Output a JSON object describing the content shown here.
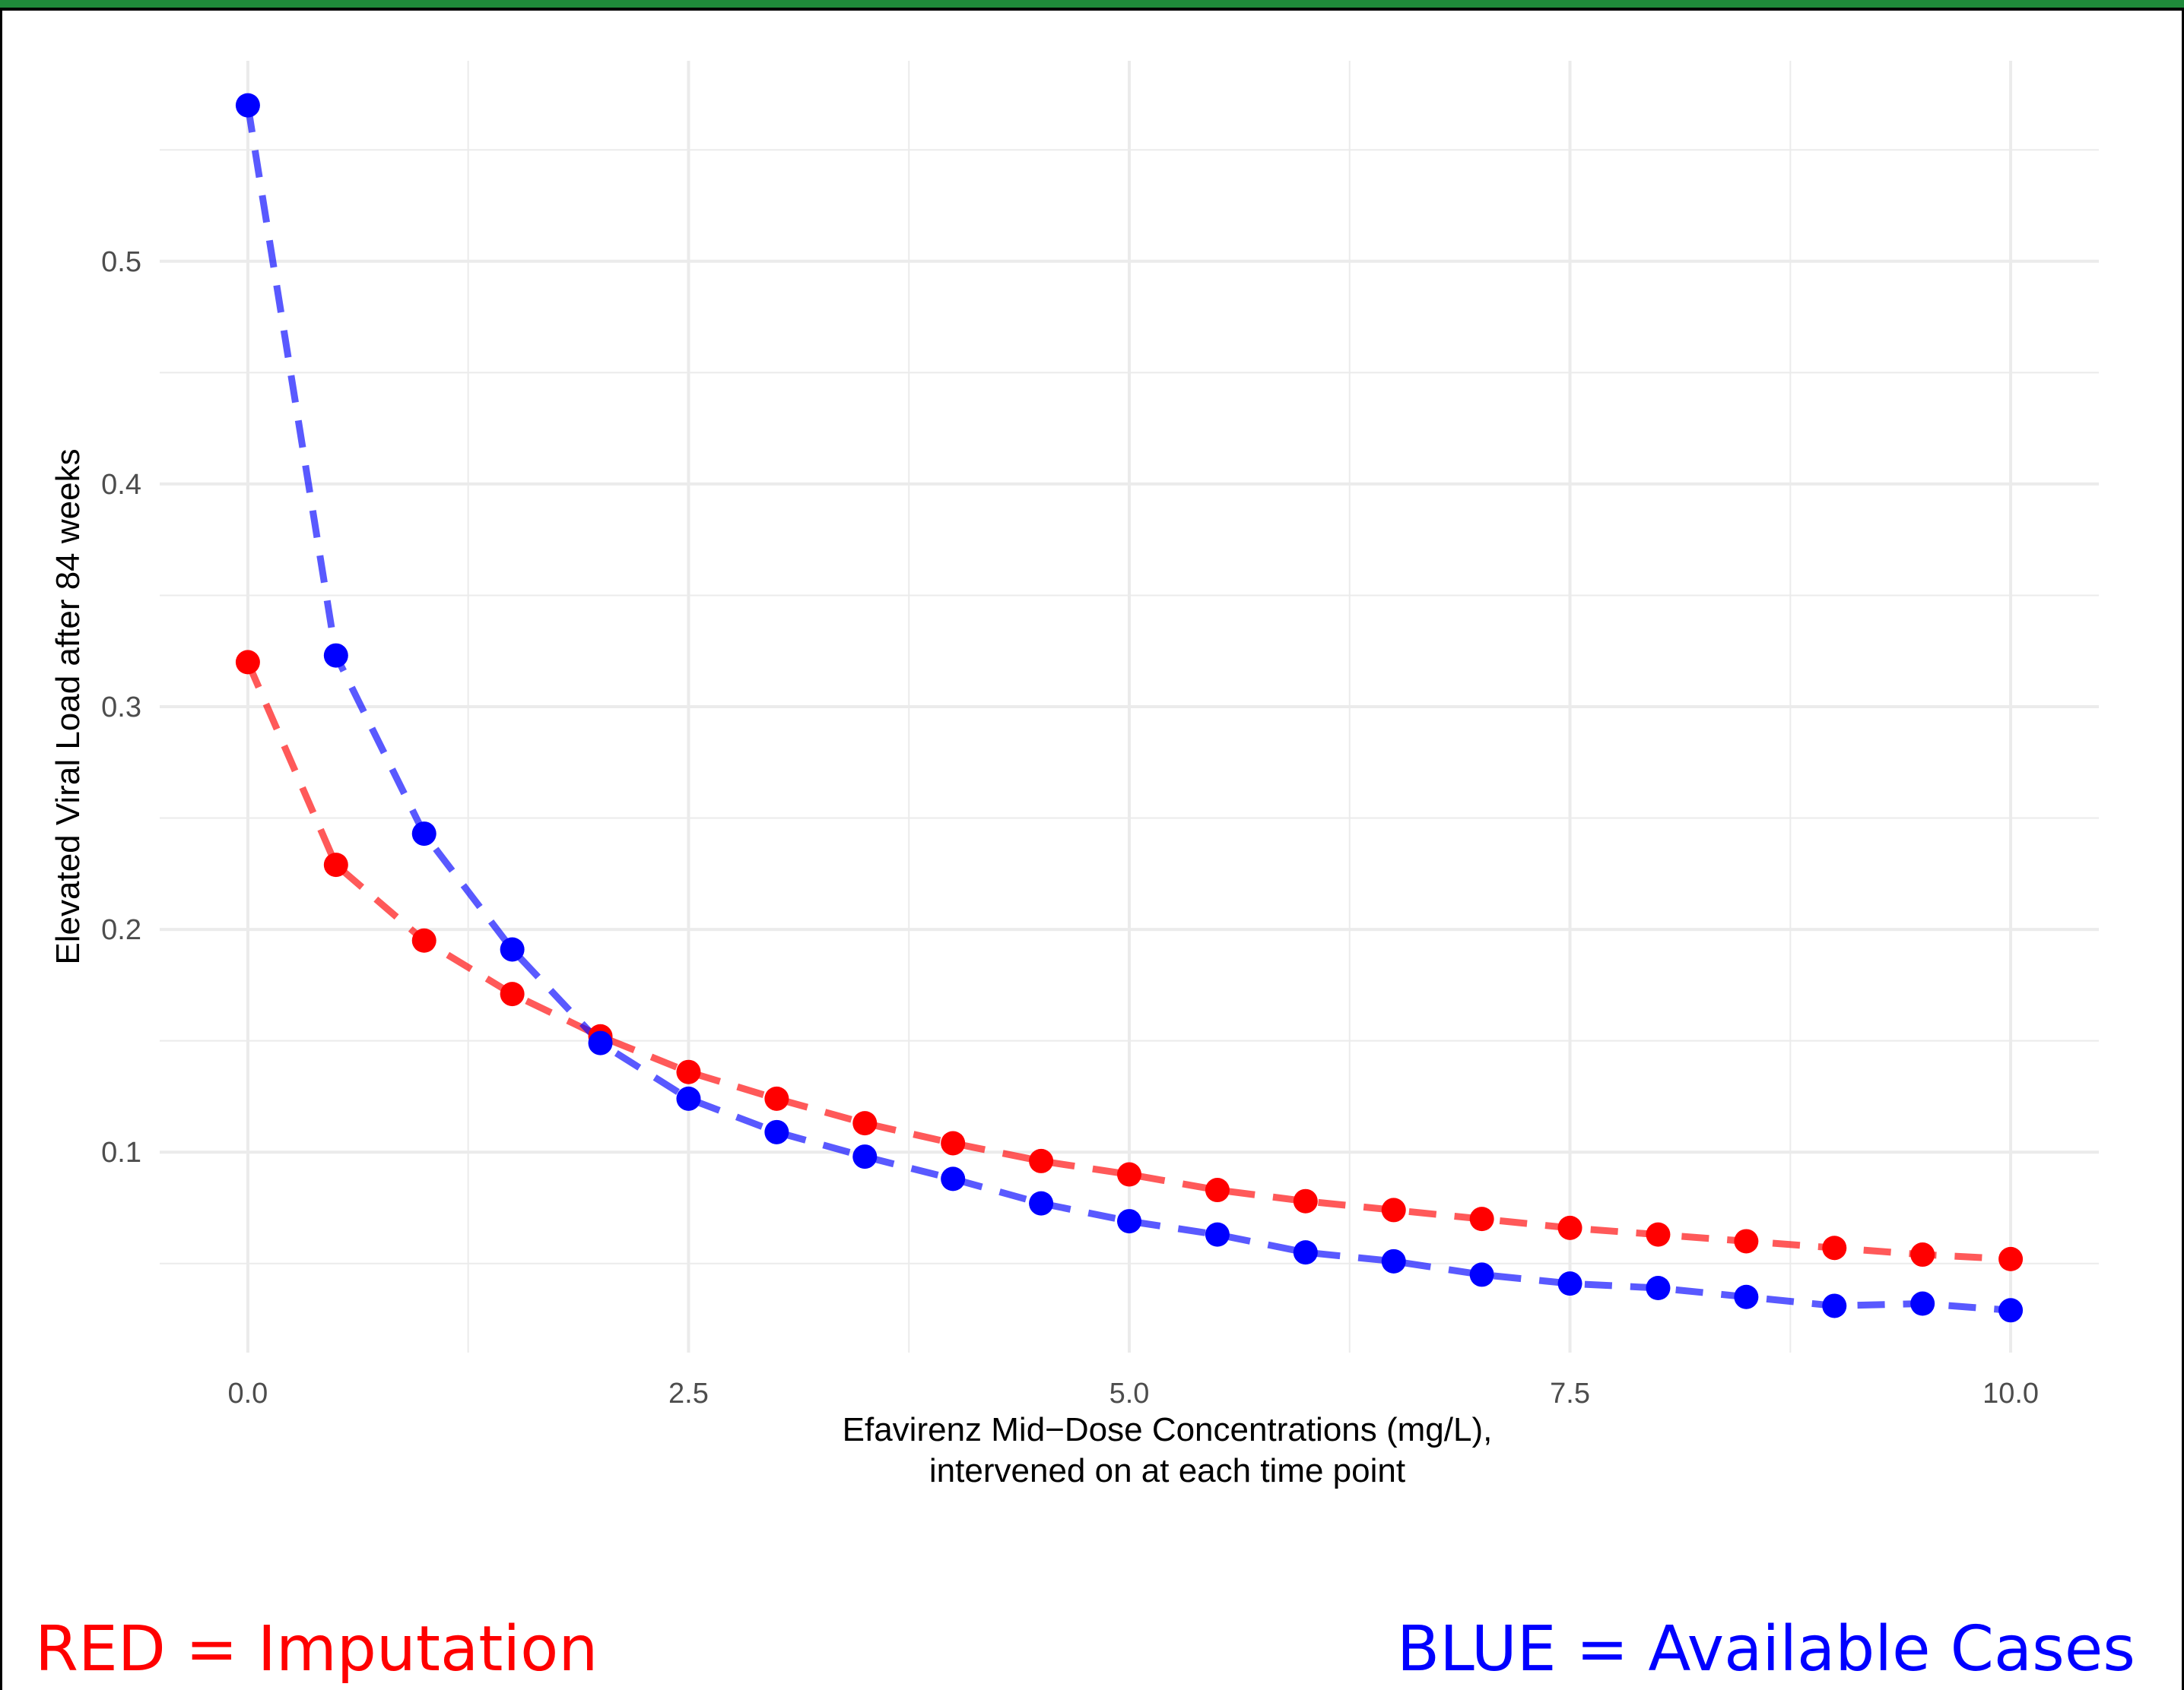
{
  "chart_data": {
    "type": "line",
    "xlabel": [
      "Efavirenz Mid−Dose Concentrations (mg/L),",
      "intervened on at each time point"
    ],
    "ylabel": "Elevated Viral Load after 84 weeks",
    "xlim": [
      -0.5,
      10.5
    ],
    "ylim": [
      0.01,
      0.59
    ],
    "x_ticks": [
      "0.0",
      "2.5",
      "5.0",
      "7.5",
      "10.0"
    ],
    "x_tick_values": [
      0,
      2.5,
      5,
      7.5,
      10
    ],
    "y_ticks": [
      "0.1",
      "0.2",
      "0.3",
      "0.4",
      "0.5"
    ],
    "y_tick_values": [
      0.1,
      0.2,
      0.3,
      0.4,
      0.5
    ],
    "grid": true,
    "x": [
      0,
      0.5,
      1,
      1.5,
      2,
      2.5,
      3,
      3.5,
      4,
      4.5,
      5,
      5.5,
      6,
      6.5,
      7,
      7.5,
      8,
      8.5,
      9,
      9.5,
      10
    ],
    "series": [
      {
        "color": "#ff0000",
        "values": [
          0.32,
          0.229,
          0.195,
          0.171,
          0.152,
          0.136,
          0.124,
          0.113,
          0.104,
          0.096,
          0.09,
          0.083,
          0.078,
          0.074,
          0.07,
          0.066,
          0.063,
          0.06,
          0.057,
          0.054,
          0.052
        ]
      },
      {
        "color": "#0000ff",
        "values": [
          0.57,
          0.323,
          0.243,
          0.191,
          0.149,
          0.124,
          0.109,
          0.098,
          0.088,
          0.077,
          0.069,
          0.063,
          0.055,
          0.051,
          0.045,
          0.041,
          0.039,
          0.035,
          0.031,
          0.032,
          0.029
        ]
      }
    ]
  },
  "legend": {
    "red_text": "RED = Imputation",
    "blue_text": "BLUE = Available Cases",
    "red_color": "#ff0000",
    "blue_color": "#0000ff"
  }
}
